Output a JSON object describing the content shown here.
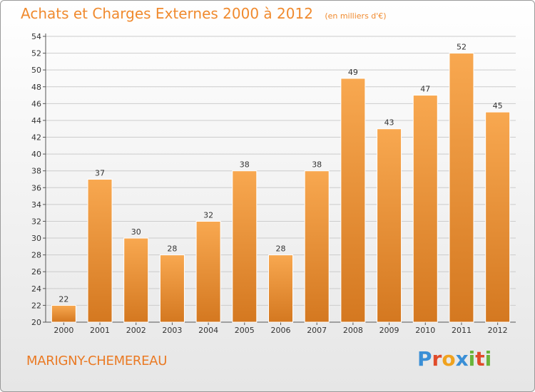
{
  "header": {
    "title": "Achats et Charges Externes 2000 à 2012",
    "unit": "(en milliers d'€)"
  },
  "footer": {
    "city": "MARIGNY-CHEMEREAU",
    "logo": "Proxiti"
  },
  "colors": {
    "bar_light": "#f8a850",
    "bar_dark": "#d47820",
    "title": "#f08a2e",
    "grid": "#cccccc"
  },
  "chart_data": {
    "type": "bar",
    "title": "Achats et Charges Externes 2000 à 2012",
    "subtitle": "(en milliers d'€)",
    "categories": [
      "2000",
      "2001",
      "2002",
      "2003",
      "2004",
      "2005",
      "2006",
      "2007",
      "2008",
      "2009",
      "2010",
      "2011",
      "2012"
    ],
    "values": [
      22,
      37,
      30,
      28,
      32,
      38,
      28,
      38,
      49,
      43,
      47,
      52,
      45
    ],
    "ylim": [
      20,
      54
    ],
    "yticks": [
      20,
      22,
      24,
      26,
      28,
      30,
      32,
      34,
      36,
      38,
      40,
      42,
      44,
      46,
      48,
      50,
      52,
      54
    ],
    "grid": true,
    "legend": "none"
  }
}
